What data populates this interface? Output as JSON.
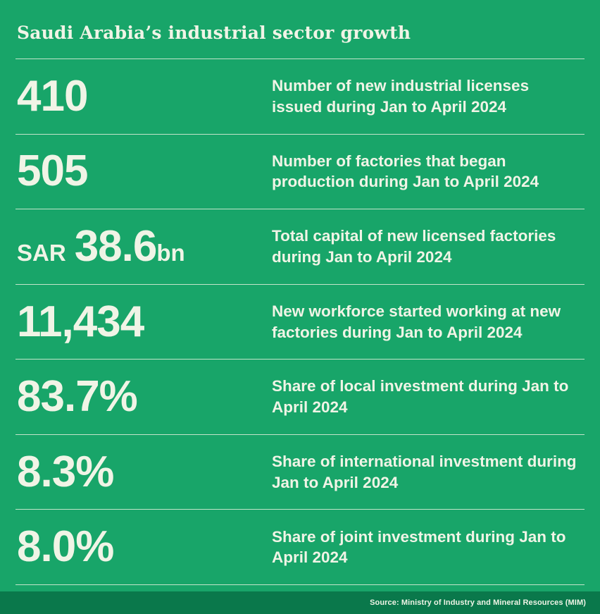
{
  "colors": {
    "background": "#18A569",
    "footer_background": "#0A784B",
    "text": "#F0F4E6",
    "divider": "#EEF4E2"
  },
  "header": {
    "title": "Saudi Arabia’s industrial sector growth"
  },
  "rows": [
    {
      "prefix": "",
      "value": "410",
      "suffix": "",
      "description": "Number of new industrial licenses issued during Jan to April 2024"
    },
    {
      "prefix": "",
      "value": "505",
      "suffix": "",
      "description": "Number of factories that began production during Jan to April 2024"
    },
    {
      "prefix": "SAR",
      "value": "38.6",
      "suffix": "bn",
      "description": "Total capital of new licensed factories during Jan to April 2024"
    },
    {
      "prefix": "",
      "value": "11,434",
      "suffix": "",
      "description": "New workforce started working at new factories during Jan to April 2024"
    },
    {
      "prefix": "",
      "value": "83.7%",
      "suffix": "",
      "description": "Share of local investment during Jan to April 2024"
    },
    {
      "prefix": "",
      "value": "8.3%",
      "suffix": "",
      "description": "Share of international investment during Jan to April 2024"
    },
    {
      "prefix": "",
      "value": "8.0%",
      "suffix": "",
      "description": "Share of joint investment during Jan to April 2024"
    }
  ],
  "footer": {
    "source": "Source: Ministry of Industry and Mineral Resources (MIM)"
  },
  "chart_data": {
    "type": "table",
    "title": "Saudi Arabia’s industrial sector growth",
    "columns": [
      "value",
      "description"
    ],
    "rows": [
      [
        "410",
        "Number of new industrial licenses issued during Jan to April 2024"
      ],
      [
        "505",
        "Number of factories that began production during Jan to April 2024"
      ],
      [
        "SAR 38.6bn",
        "Total capital of new licensed factories during Jan to April 2024"
      ],
      [
        "11,434",
        "New workforce started working at new factories during Jan to April 2024"
      ],
      [
        "83.7%",
        "Share of local investment during Jan to April 2024"
      ],
      [
        "8.3%",
        "Share of international investment during Jan to April 2024"
      ],
      [
        "8.0%",
        "Share of joint investment during Jan to April 2024"
      ]
    ],
    "source": "Source: Ministry of Industry and Mineral Resources (MIM)"
  }
}
